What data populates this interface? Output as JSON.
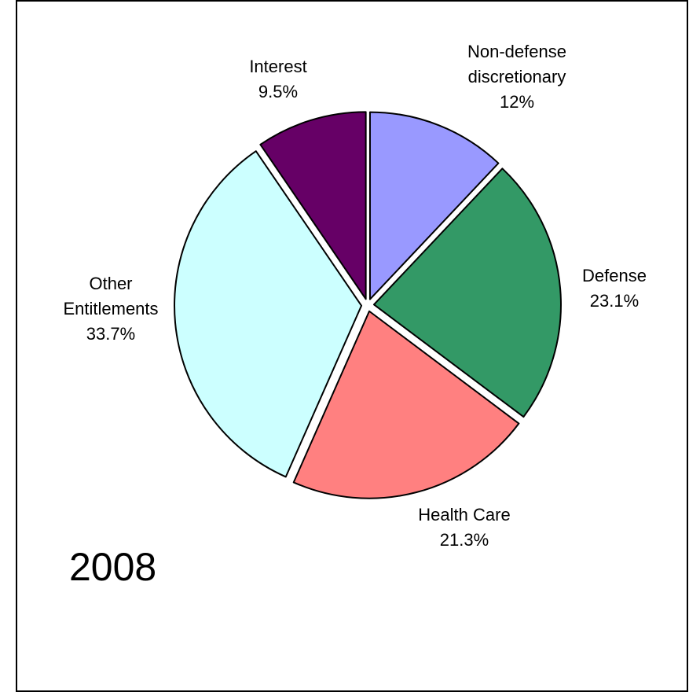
{
  "chart_data": {
    "type": "pie",
    "title": "",
    "year_label": "2008",
    "slices": [
      {
        "name": "Non-defense discretionary",
        "label_lines": [
          "Non-defense",
          "discretionary",
          "12%"
        ],
        "value": 12.0,
        "color": "#9999ff"
      },
      {
        "name": "Defense",
        "label_lines": [
          "Defense",
          "23.1%"
        ],
        "value": 23.1,
        "color": "#339966"
      },
      {
        "name": "Health Care",
        "label_lines": [
          "Health Care",
          "21.3%"
        ],
        "value": 21.3,
        "color": "#ff8080"
      },
      {
        "name": "Other Entitlements",
        "label_lines": [
          "Other",
          "Entitlements",
          "33.7%"
        ],
        "value": 33.7,
        "color": "#ccffff"
      },
      {
        "name": "Interest",
        "label_lines": [
          "Interest",
          "9.5%"
        ],
        "value": 9.5,
        "color": "#660066"
      }
    ]
  }
}
